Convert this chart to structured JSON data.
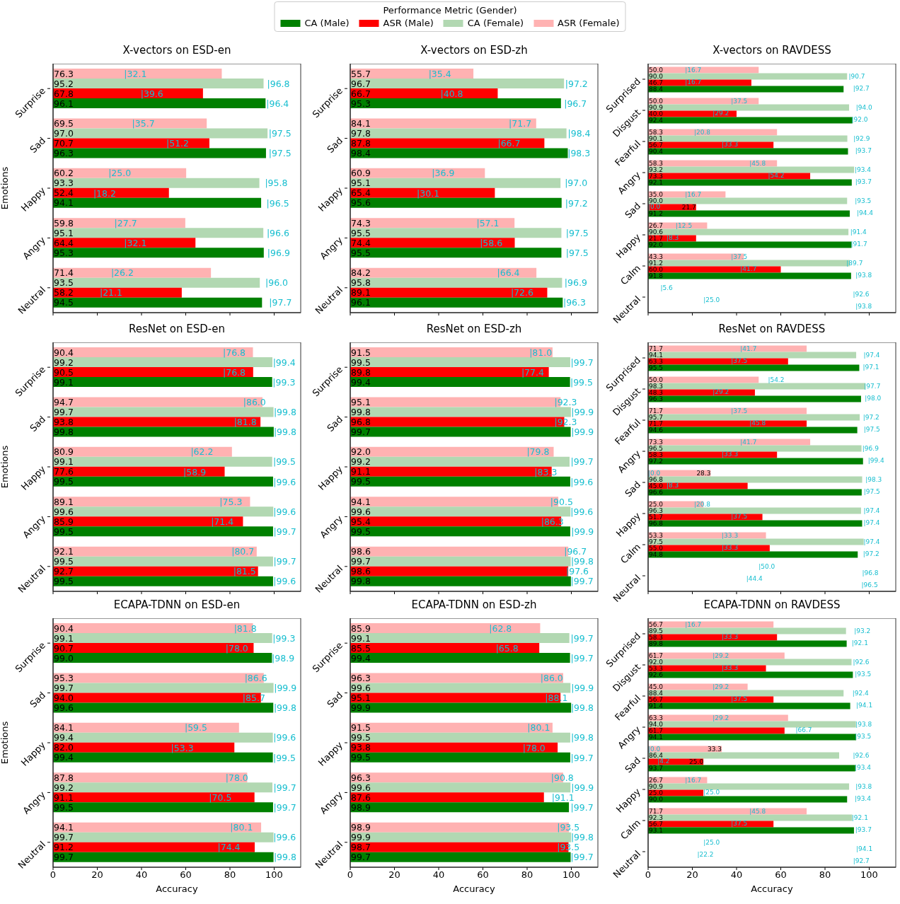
{
  "chart_data": [
    {
      "type": "bar",
      "title": "X-vectors on ESD-en",
      "ylabel": "Emotions",
      "orientation": "horizontal",
      "legend": "top",
      "legend_title": "Performance Metric (Gender)",
      "tick_labels": "y",
      "xlim": [
        0,
        112
      ],
      "xticks": [
        0,
        20,
        40,
        60,
        80,
        100
      ],
      "categories": [
        "Surprise",
        "Sad",
        "Happy",
        "Angry",
        "Neutral"
      ],
      "series": [
        {
          "name": "CA (Male)",
          "color": "#008000",
          "values": [
            96.1,
            96.3,
            94.1,
            95.3,
            94.5
          ],
          "value_labels": [
            "96.1",
            "96.3",
            "94.1",
            "95.3",
            "94.5"
          ]
        },
        {
          "name": "ASR (Male)",
          "color": "#ff0000",
          "values": [
            67.8,
            70.7,
            52.4,
            64.4,
            58.2
          ],
          "value_labels": [
            "67.8",
            "70.7",
            "52.4",
            "64.4",
            "58.2"
          ]
        },
        {
          "name": "CA (Female)",
          "color": "#b2d8b2",
          "values": [
            95.2,
            97.0,
            93.3,
            95.1,
            93.5
          ],
          "value_labels": [
            "95.2",
            "97.0",
            "93.3",
            "95.1",
            "93.5"
          ]
        },
        {
          "name": "ASR (Female)",
          "color": "#ffb2b2",
          "values": [
            76.3,
            69.5,
            60.2,
            59.8,
            71.4
          ],
          "value_labels": [
            "76.3",
            "69.5",
            "60.2",
            "59.8",
            "71.4"
          ]
        }
      ],
      "annotations": [
        "|96.4",
        "|39.6",
        "|96.8",
        "|32.1",
        "|97.5",
        "|51.2",
        "|97.5",
        "|35.7",
        "|96.5",
        "|18.2",
        "|95.8",
        "|25.0",
        "|96.9",
        "|32.1",
        "|96.6",
        "|27.7",
        "|97.7",
        "|21.1",
        "|96.0",
        "|26.2"
      ]
    },
    {
      "type": "bar",
      "title": "X-vectors on ESD-zh",
      "orientation": "horizontal",
      "tick_labels": "y",
      "xlim": [
        0,
        112
      ],
      "xticks": [
        0,
        20,
        40,
        60,
        80,
        100
      ],
      "categories": [
        "Surprise",
        "Sad",
        "Happy",
        "Angry",
        "Neutral"
      ],
      "series": [
        {
          "color": "#008000",
          "values": [
            95.3,
            98.4,
            95.6,
            95.5,
            96.1
          ],
          "value_labels": [
            "95.3",
            "98.4",
            "95.6",
            "95.5",
            "96.1"
          ]
        },
        {
          "color": "#ff0000",
          "values": [
            66.7,
            87.8,
            65.4,
            74.4,
            89.1
          ],
          "value_labels": [
            "66.7",
            "87.8",
            "65.4",
            "74.4",
            "89.1"
          ]
        },
        {
          "color": "#b2d8b2",
          "values": [
            96.7,
            97.8,
            95.1,
            95.5,
            95.8
          ],
          "value_labels": [
            "96.7",
            "97.8",
            "95.1",
            "95.5",
            "95.8"
          ]
        },
        {
          "color": "#ffb2b2",
          "values": [
            55.7,
            84.1,
            60.9,
            74.3,
            84.2
          ],
          "value_labels": [
            "55.7",
            "84.1",
            "60.9",
            "74.3",
            "84.2"
          ]
        }
      ],
      "annotations": [
        "|96.7",
        "|40.8",
        "|97.2",
        "|35.4",
        "|98.3",
        "|66.7",
        "|98.4",
        "|71.7",
        "|97.2",
        "|30.1",
        "|97.0",
        "|36.9",
        "|97.5",
        "|58.6",
        "|97.5",
        "|57.1",
        "|96.3",
        "|72.6",
        "|96.9",
        "|66.4"
      ]
    },
    {
      "type": "bar",
      "title": "X-vectors on RAVDESS",
      "orientation": "horizontal",
      "tick_labels": "y",
      "xlim": [
        0,
        112
      ],
      "xticks": [
        0,
        20,
        40,
        60,
        80,
        100
      ],
      "categories": [
        "Surprised",
        "Disgust",
        "Fearful",
        "Angry",
        "Sad",
        "Happy",
        "Calm",
        "Neutral"
      ],
      "series": [
        {
          "color": "#008000",
          "values": [
            88.4,
            92.4,
            90.4,
            92.1,
            91.2,
            92.0,
            91.8,
            null
          ],
          "value_labels": [
            "88.4",
            "92.4",
            "90.4",
            "92.1",
            "91.2",
            "92.0",
            "91.8",
            null
          ]
        },
        {
          "color": "#ff0000",
          "values": [
            46.7,
            40.0,
            56.7,
            73.3,
            21.7,
            21.7,
            60.0,
            null
          ],
          "value_labels": [
            "46.7",
            "40.0",
            "56.7",
            "73.3",
            "21.7",
            "21.7",
            "60.0",
            null
          ]
        },
        {
          "color": "#b2d8b2",
          "values": [
            90.0,
            90.9,
            90.1,
            93.2,
            90.0,
            90.6,
            91.2,
            null
          ],
          "value_labels": [
            "90.0",
            "90.9",
            "90.1",
            "93.2",
            "90.0",
            "90.6",
            "91.2",
            null
          ]
        },
        {
          "color": "#ffb2b2",
          "values": [
            50.0,
            50.0,
            58.3,
            58.3,
            35.0,
            26.7,
            43.3,
            null
          ],
          "value_labels": [
            "50.0",
            "50.0",
            "58.3",
            "58.3",
            "35.0",
            "26.7",
            "43.3",
            null
          ]
        }
      ],
      "annotations": [
        "|92.7",
        "|16.7",
        "|90.7",
        "|16.7",
        "|92.0",
        "|29.2",
        "|94.0",
        "|37.5",
        "|93.7",
        "|33.3",
        "|92.9",
        "|20.8",
        "|93.7",
        "|54.2",
        "|93.4",
        "|45.8",
        "|94.4",
        "|0.0",
        "|93.5",
        "|16.7",
        "|91.7",
        "|8.3",
        "|91.4",
        "|12.5",
        "|93.8",
        "|41.7",
        "|89.7",
        "|37.5",
        "|93.8",
        "|25.0",
        "|92.6",
        "|5.6"
      ]
    },
    {
      "type": "bar",
      "title": "ResNet on ESD-en",
      "ylabel": "Emotions",
      "orientation": "horizontal",
      "tick_labels": "y",
      "xlim": [
        0,
        112
      ],
      "xticks": [
        0,
        20,
        40,
        60,
        80,
        100
      ],
      "categories": [
        "Surprise",
        "Sad",
        "Happy",
        "Angry",
        "Neutral"
      ],
      "series": [
        {
          "color": "#008000",
          "values": [
            99.1,
            99.8,
            99.5,
            99.5,
            99.5
          ],
          "value_labels": [
            "99.1",
            "99.8",
            "99.5",
            "99.5",
            "99.5"
          ]
        },
        {
          "color": "#ff0000",
          "values": [
            90.5,
            93.8,
            77.6,
            85.9,
            92.7
          ],
          "value_labels": [
            "90.5",
            "93.8",
            "77.6",
            "85.9",
            "92.7"
          ]
        },
        {
          "color": "#b2d8b2",
          "values": [
            99.2,
            99.7,
            99.1,
            99.6,
            99.5
          ],
          "value_labels": [
            "99.2",
            "99.7",
            "99.1",
            "99.6",
            "99.5"
          ]
        },
        {
          "color": "#ffb2b2",
          "values": [
            90.4,
            94.7,
            80.9,
            89.1,
            92.1
          ],
          "value_labels": [
            "90.4",
            "94.7",
            "80.9",
            "89.1",
            "92.1"
          ]
        }
      ],
      "annotations": [
        "|99.3",
        "|76.8",
        "|99.4",
        "|76.8",
        "|99.8",
        "|81.8",
        "|99.8",
        "|86.0",
        "|99.6",
        "|58.9",
        "|99.5",
        "|62.2",
        "|99.7",
        "|71.4",
        "|99.6",
        "|75.3",
        "|99.6",
        "|81.5",
        "|99.7",
        "|80.7"
      ]
    },
    {
      "type": "bar",
      "title": "ResNet on ESD-zh",
      "orientation": "horizontal",
      "tick_labels": "y",
      "xlim": [
        0,
        112
      ],
      "xticks": [
        0,
        20,
        40,
        60,
        80,
        100
      ],
      "categories": [
        "Surprise",
        "Sad",
        "Happy",
        "Angry",
        "Neutral"
      ],
      "series": [
        {
          "color": "#008000",
          "values": [
            99.4,
            99.7,
            99.5,
            99.5,
            99.8
          ],
          "value_labels": [
            "99.4",
            "99.7",
            "99.5",
            "99.5",
            "99.8"
          ]
        },
        {
          "color": "#ff0000",
          "values": [
            89.8,
            96.8,
            91.1,
            95.4,
            98.6
          ],
          "value_labels": [
            "89.8",
            "96.8",
            "91.1",
            "95.4",
            "98.6"
          ]
        },
        {
          "color": "#b2d8b2",
          "values": [
            99.5,
            99.8,
            99.2,
            99.6,
            99.7
          ],
          "value_labels": [
            "99.5",
            "99.8",
            "99.2",
            "99.6",
            "99.7"
          ]
        },
        {
          "color": "#ffb2b2",
          "values": [
            91.5,
            95.1,
            92.0,
            94.1,
            98.6
          ],
          "value_labels": [
            "91.5",
            "95.1",
            "92.0",
            "94.1",
            "98.6"
          ]
        }
      ],
      "annotations": [
        "|99.5",
        "|77.4",
        "|99.7",
        "|81.0",
        "|99.9",
        "|92.3",
        "|99.9",
        "|92.3",
        "|99.6",
        "|83.3",
        "|99.7",
        "|79.8",
        "|99.9",
        "|86.3",
        "|99.6",
        "|90.5",
        "|99.7",
        "|97.6",
        "|99.8",
        "|96.7"
      ]
    },
    {
      "type": "bar",
      "title": "ResNet on RAVDESS",
      "orientation": "horizontal",
      "tick_labels": "y",
      "xlim": [
        0,
        112
      ],
      "xticks": [
        0,
        20,
        40,
        60,
        80,
        100
      ],
      "categories": [
        "Surprised",
        "Disgust",
        "Fearful",
        "Angry",
        "Sad",
        "Happy",
        "Calm",
        "Neutral"
      ],
      "series": [
        {
          "color": "#008000",
          "values": [
            95.5,
            96.3,
            94.6,
            97.2,
            96.6,
            96.8,
            94.8,
            null
          ],
          "value_labels": [
            "95.5",
            "96.3",
            "94.6",
            "97.2",
            "96.6",
            "96.8",
            "94.8",
            null
          ]
        },
        {
          "color": "#ff0000",
          "values": [
            63.3,
            48.3,
            71.7,
            58.3,
            45.0,
            51.7,
            55.0,
            null
          ],
          "value_labels": [
            "63.3",
            "48.3",
            "71.7",
            "58.3",
            "45.0",
            "51.7",
            "55.0",
            null
          ]
        },
        {
          "color": "#b2d8b2",
          "values": [
            94.1,
            98.3,
            95.7,
            96.5,
            96.8,
            96.3,
            97.5,
            null
          ],
          "value_labels": [
            "94.1",
            "98.3",
            "95.7",
            "96.5",
            "96.8",
            "96.3",
            "97.5",
            null
          ]
        },
        {
          "color": "#ffb2b2",
          "values": [
            71.7,
            50.0,
            71.7,
            73.3,
            28.3,
            25.0,
            53.3,
            null
          ],
          "value_labels": [
            "71.7",
            "50.0",
            "71.7",
            "73.3",
            "28.3",
            "25.0",
            "53.3",
            null
          ]
        }
      ],
      "annotations": [
        "|97.1",
        "|37.5",
        "|97.4",
        "|41.7",
        "|98.0",
        "|29.2",
        "|97.7",
        "|54.2",
        "|97.5",
        "|45.8",
        "|97.2",
        "|37.5",
        "|99.4",
        "|33.3",
        "|96.9",
        "|41.7",
        "|97.5",
        "|8.3",
        "|98.3",
        "|0.0",
        "|97.4",
        "|37.5",
        "|97.4",
        "|20.8",
        "|97.2",
        "|33.3",
        "|97.4",
        "|33.3",
        "|96.5",
        "|44.4",
        "|96.8",
        "|50.0"
      ]
    },
    {
      "type": "bar",
      "title": "ECAPA-TDNN on ESD-en",
      "ylabel": "Emotions",
      "xlabel": "Accuracy",
      "orientation": "horizontal",
      "xlim": [
        0,
        112
      ],
      "xticks": [
        0,
        20,
        40,
        60,
        80,
        100
      ],
      "categories": [
        "Surprise",
        "Sad",
        "Happy",
        "Angry",
        "Neutral"
      ],
      "series": [
        {
          "color": "#008000",
          "values": [
            99.0,
            99.6,
            99.4,
            99.5,
            99.7
          ],
          "value_labels": [
            "99.0",
            "99.6",
            "99.4",
            "99.5",
            "99.7"
          ]
        },
        {
          "color": "#ff0000",
          "values": [
            90.7,
            94.0,
            82.0,
            91.1,
            91.2
          ],
          "value_labels": [
            "90.7",
            "94.0",
            "82.0",
            "91.1",
            "91.2"
          ]
        },
        {
          "color": "#b2d8b2",
          "values": [
            99.1,
            99.7,
            99.4,
            99.2,
            99.7
          ],
          "value_labels": [
            "99.1",
            "99.7",
            "99.4",
            "99.2",
            "99.7"
          ]
        },
        {
          "color": "#ffb2b2",
          "values": [
            90.4,
            95.3,
            84.1,
            87.8,
            94.1
          ],
          "value_labels": [
            "90.4",
            "95.3",
            "84.1",
            "87.8",
            "94.1"
          ]
        }
      ],
      "annotations": [
        "|98.9",
        "|78.0",
        "|99.3",
        "|81.8",
        "|99.8",
        "|85.7",
        "|99.9",
        "|86.6",
        "|99.5",
        "|53.3",
        "|99.6",
        "|59.5",
        "|99.7",
        "|70.5",
        "|99.7",
        "|78.0",
        "|99.8",
        "|74.4",
        "|99.6",
        "|80.1"
      ]
    },
    {
      "type": "bar",
      "title": "ECAPA-TDNN on ESD-zh",
      "xlabel": "Accuracy",
      "orientation": "horizontal",
      "xlim": [
        0,
        112
      ],
      "xticks": [
        0,
        20,
        40,
        60,
        80,
        100
      ],
      "categories": [
        "Surprise",
        "Sad",
        "Happy",
        "Angry",
        "Neutral"
      ],
      "series": [
        {
          "color": "#008000",
          "values": [
            99.4,
            99.9,
            99.5,
            98.9,
            99.7
          ],
          "value_labels": [
            "99.4",
            "99.9",
            "99.5",
            "98.9",
            "99.7"
          ]
        },
        {
          "color": "#ff0000",
          "values": [
            85.5,
            95.1,
            93.8,
            87.6,
            98.7
          ],
          "value_labels": [
            "85.5",
            "95.1",
            "93.8",
            "87.6",
            "98.7"
          ]
        },
        {
          "color": "#b2d8b2",
          "values": [
            99.1,
            99.6,
            99.5,
            99.6,
            99.9
          ],
          "value_labels": [
            "99.1",
            "99.6",
            "99.5",
            "99.6",
            "99.9"
          ]
        },
        {
          "color": "#ffb2b2",
          "values": [
            85.9,
            96.3,
            91.5,
            96.3,
            98.9
          ],
          "value_labels": [
            "85.9",
            "96.3",
            "91.5",
            "96.3",
            "98.9"
          ]
        }
      ],
      "annotations": [
        "|99.7",
        "|65.8",
        "|99.7",
        "|62.8",
        "|99.8",
        "|88.1",
        "|99.9",
        "|86.0",
        "|99.7",
        "|78.0",
        "|99.8",
        "|80.1",
        "|99.7",
        "|91.1",
        "|99.9",
        "|90.8",
        "|99.7",
        "|93.5",
        "|99.8",
        "|93.5"
      ]
    },
    {
      "type": "bar",
      "title": "ECAPA-TDNN on RAVDESS",
      "xlabel": "Accuracy",
      "orientation": "horizontal",
      "xlim": [
        0,
        112
      ],
      "xticks": [
        0,
        20,
        40,
        60,
        80,
        100
      ],
      "categories": [
        "Surprised",
        "Disgust",
        "Fearful",
        "Angry",
        "Sad",
        "Happy",
        "Calm",
        "Neutral"
      ],
      "series": [
        {
          "color": "#008000",
          "values": [
            89.8,
            92.6,
            91.4,
            94.1,
            93.7,
            90.0,
            93.1,
            null
          ],
          "value_labels": [
            "89.8",
            "92.6",
            "91.4",
            "94.1",
            "93.7",
            "90.0",
            "93.1",
            null
          ]
        },
        {
          "color": "#ff0000",
          "values": [
            58.3,
            53.3,
            56.7,
            61.7,
            25.0,
            25.0,
            56.7,
            null
          ],
          "value_labels": [
            "58.3",
            "53.3",
            "56.7",
            "61.7",
            "25.0",
            "25.0",
            "56.7",
            null
          ]
        },
        {
          "color": "#b2d8b2",
          "values": [
            89.5,
            92.0,
            88.4,
            94.0,
            86.4,
            90.9,
            92.3,
            null
          ],
          "value_labels": [
            "89.5",
            "92.0",
            "88.4",
            "94.0",
            "86.4",
            "90.9",
            "92.3",
            null
          ]
        },
        {
          "color": "#ffb2b2",
          "values": [
            56.7,
            61.7,
            45.0,
            63.3,
            33.3,
            26.7,
            71.7,
            null
          ],
          "value_labels": [
            "56.7",
            "61.7",
            "45.0",
            "63.3",
            "33.3",
            "26.7",
            "71.7",
            null
          ]
        }
      ],
      "annotations": [
        "|92.1",
        "|33.3",
        "|93.2",
        "|16.7",
        "|93.5",
        "|33.3",
        "|92.6",
        "|29.2",
        "|94.1",
        "|37.5",
        "|92.4",
        "|29.2",
        "|93.5",
        "|66.7",
        "|93.8",
        "|29.2",
        "|93.4",
        "|4.2",
        "|92.6",
        "|0.0",
        "|93.4",
        "|25.0",
        "|93.8",
        "|16.7",
        "|93.7",
        "|37.5",
        "|92.1",
        "|45.8",
        "|92.7",
        "|22.2",
        "|94.1",
        "|25.0"
      ]
    }
  ]
}
